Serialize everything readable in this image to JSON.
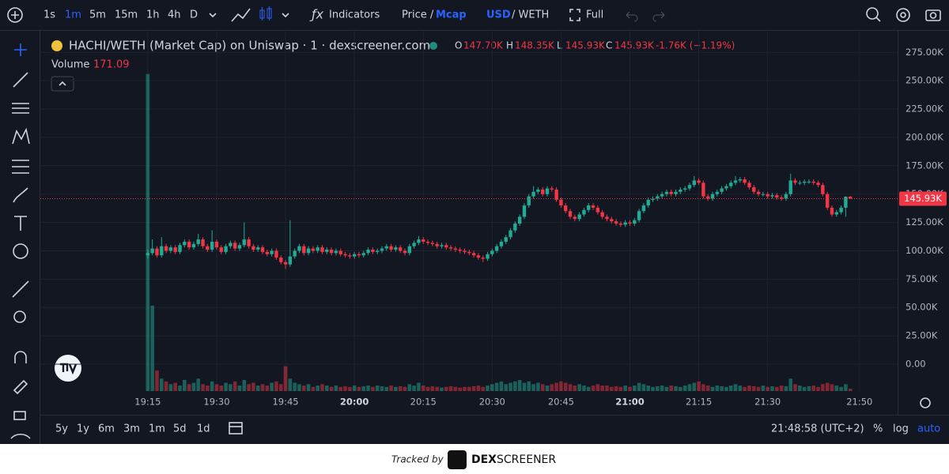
{
  "toolbar": {
    "intervals": [
      "1s",
      "1m",
      "5m",
      "15m",
      "1h",
      "4h",
      "D"
    ],
    "active_interval": 1,
    "indicators": "Indicators",
    "price": "Price /",
    "mcap": "Mcap",
    "usd": "USD",
    "weth": "/ WETH",
    "full": "Full"
  },
  "header": {
    "title": "HACHI/WETH (Market Cap) on Uniswap · 1 · dexscreener.com",
    "ohlc": [
      {
        "label": "O",
        "value": "147.70K"
      },
      {
        "label": "H",
        "value": "148.35K"
      },
      {
        "label": "L",
        "value": "145.93K"
      },
      {
        "label": "C",
        "value": "145.93K"
      }
    ],
    "change": "-1.76K (−1.19%)",
    "volume_label": "Volume"
  },
  "bottom": {
    "ranges": [
      "5y",
      "1y",
      "6m",
      "3m",
      "1m",
      "5d",
      "1d"
    ],
    "clock": "21:48:58 (UTC+2)",
    "percent": "%",
    "log": "log",
    "auto": "auto"
  },
  "footer": {
    "tracked": "Tracked by",
    "brand1": "DEX",
    "brand2": "SCREENER"
  },
  "chart_data": {
    "type": "candlestick",
    "up_color": "#22ab94",
    "down_color": "#f23645",
    "grid": true,
    "xlim": [
      -23.4,
      163.3
    ],
    "xticks": [
      {
        "value": 0,
        "label": "19:15"
      },
      {
        "value": 15,
        "label": "19:30"
      },
      {
        "value": 30,
        "label": "19:45"
      },
      {
        "value": 45,
        "label": "20:00",
        "bold": true
      },
      {
        "value": 60,
        "label": "20:15"
      },
      {
        "value": 75,
        "label": "20:30"
      },
      {
        "value": 90,
        "label": "20:45"
      },
      {
        "value": 105,
        "label": "21:00",
        "bold": true
      },
      {
        "value": 120,
        "label": "21:15"
      },
      {
        "value": 135,
        "label": "21:30"
      },
      {
        "value": 155,
        "label": "21:50"
      }
    ],
    "ylim": [
      -23.7,
      294
    ],
    "yticks": [
      {
        "value": 0,
        "label": "0.00"
      },
      {
        "value": 25,
        "label": "25.00K"
      },
      {
        "value": 50,
        "label": "50.00K"
      },
      {
        "value": 75,
        "label": "75.00K"
      },
      {
        "value": 100,
        "label": "100.00K"
      },
      {
        "value": 125,
        "label": "125.00K"
      },
      {
        "value": 150,
        "label": "150.00K"
      },
      {
        "value": 175,
        "label": "175.00K"
      },
      {
        "value": 200,
        "label": "200.00K"
      },
      {
        "value": 225,
        "label": "225.00K"
      },
      {
        "value": 250,
        "label": "250.00K"
      },
      {
        "value": 275,
        "label": "275.00K"
      }
    ],
    "last_price_label": "145.93K",
    "vlim": [
      0,
      23500
    ],
    "candles": [
      [
        96,
        101,
        93,
        98
      ],
      [
        98,
        110,
        96,
        102
      ],
      [
        102,
        104,
        94,
        96
      ],
      [
        96,
        112,
        94,
        104
      ],
      [
        104,
        106,
        98,
        100
      ],
      [
        100,
        105,
        98,
        103
      ],
      [
        103,
        105,
        97,
        99
      ],
      [
        99,
        107,
        97,
        105
      ],
      [
        105,
        110,
        103,
        108
      ],
      [
        108,
        110,
        101,
        103
      ],
      [
        103,
        108,
        101,
        106
      ],
      [
        106,
        115,
        104,
        110
      ],
      [
        110,
        112,
        102,
        104
      ],
      [
        104,
        106,
        99,
        101
      ],
      [
        101,
        118,
        99,
        108
      ],
      [
        108,
        110,
        101,
        103
      ],
      [
        103,
        105,
        97,
        99
      ],
      [
        99,
        106,
        97,
        104
      ],
      [
        104,
        109,
        102,
        107
      ],
      [
        107,
        109,
        100,
        102
      ],
      [
        102,
        107,
        100,
        105
      ],
      [
        105,
        125,
        103,
        110
      ],
      [
        110,
        112,
        102,
        104
      ],
      [
        104,
        106,
        99,
        101
      ],
      [
        101,
        105,
        99,
        103
      ],
      [
        103,
        105,
        97,
        99
      ],
      [
        99,
        101,
        95,
        97
      ],
      [
        97,
        102,
        95,
        100
      ],
      [
        100,
        102,
        92,
        94
      ],
      [
        94,
        96,
        88,
        90
      ],
      [
        90,
        92,
        84,
        88
      ],
      [
        88,
        127,
        86,
        95
      ],
      [
        95,
        102,
        93,
        100
      ],
      [
        100,
        106,
        98,
        104
      ],
      [
        104,
        106,
        96,
        98
      ],
      [
        98,
        104,
        96,
        102
      ],
      [
        102,
        104,
        98,
        100
      ],
      [
        100,
        105,
        98,
        103
      ],
      [
        103,
        105,
        97,
        99
      ],
      [
        99,
        103,
        97,
        101
      ],
      [
        101,
        103,
        96,
        98
      ],
      [
        98,
        102,
        96,
        100
      ],
      [
        100,
        102,
        95,
        97
      ],
      [
        97,
        99,
        94,
        96
      ],
      [
        96,
        98,
        93,
        95
      ],
      [
        95,
        99,
        93,
        97
      ],
      [
        97,
        99,
        94,
        96
      ],
      [
        96,
        100,
        94,
        98
      ],
      [
        98,
        103,
        96,
        101
      ],
      [
        101,
        103,
        97,
        99
      ],
      [
        99,
        102,
        97,
        100
      ],
      [
        100,
        104,
        98,
        102
      ],
      [
        102,
        106,
        100,
        104
      ],
      [
        104,
        106,
        99,
        101
      ],
      [
        101,
        105,
        99,
        103
      ],
      [
        103,
        105,
        98,
        100
      ],
      [
        100,
        102,
        96,
        98
      ],
      [
        98,
        106,
        96,
        104
      ],
      [
        104,
        109,
        102,
        107
      ],
      [
        107,
        113,
        105,
        110
      ],
      [
        110,
        112,
        106,
        108
      ],
      [
        108,
        110,
        105,
        107
      ],
      [
        107,
        109,
        104,
        106
      ],
      [
        106,
        108,
        102,
        104
      ],
      [
        104,
        107,
        102,
        105
      ],
      [
        105,
        107,
        101,
        103
      ],
      [
        103,
        105,
        100,
        102
      ],
      [
        102,
        104,
        99,
        101
      ],
      [
        101,
        103,
        98,
        100
      ],
      [
        100,
        102,
        97,
        99
      ],
      [
        99,
        101,
        96,
        98
      ],
      [
        98,
        100,
        94,
        96
      ],
      [
        96,
        98,
        92,
        94
      ],
      [
        94,
        96,
        90,
        93
      ],
      [
        93,
        99,
        91,
        97
      ],
      [
        97,
        102,
        95,
        100
      ],
      [
        100,
        106,
        98,
        104
      ],
      [
        104,
        110,
        102,
        108
      ],
      [
        108,
        114,
        106,
        112
      ],
      [
        112,
        120,
        110,
        118
      ],
      [
        118,
        126,
        116,
        124
      ],
      [
        124,
        132,
        122,
        130
      ],
      [
        130,
        142,
        128,
        140
      ],
      [
        140,
        150,
        138,
        148
      ],
      [
        148,
        157,
        146,
        152
      ],
      [
        152,
        156,
        150,
        154
      ],
      [
        154,
        156,
        148,
        150
      ],
      [
        150,
        157,
        148,
        155
      ],
      [
        155,
        157,
        152,
        154
      ],
      [
        154,
        156,
        143,
        145
      ],
      [
        145,
        147,
        138,
        140
      ],
      [
        140,
        142,
        133,
        135
      ],
      [
        135,
        137,
        128,
        130
      ],
      [
        130,
        132,
        126,
        128
      ],
      [
        128,
        134,
        126,
        132
      ],
      [
        132,
        138,
        130,
        136
      ],
      [
        136,
        142,
        134,
        140
      ],
      [
        140,
        142,
        136,
        138
      ],
      [
        138,
        140,
        132,
        134
      ],
      [
        134,
        136,
        128,
        130
      ],
      [
        130,
        132,
        126,
        128
      ],
      [
        128,
        130,
        124,
        126
      ],
      [
        126,
        128,
        122,
        124
      ],
      [
        124,
        126,
        121,
        123
      ],
      [
        123,
        127,
        121,
        125
      ],
      [
        125,
        127,
        122,
        124
      ],
      [
        124,
        129,
        122,
        127
      ],
      [
        127,
        137,
        125,
        135
      ],
      [
        135,
        142,
        133,
        140
      ],
      [
        140,
        147,
        138,
        145
      ],
      [
        145,
        148,
        143,
        146
      ],
      [
        146,
        150,
        144,
        148
      ],
      [
        148,
        152,
        146,
        150
      ],
      [
        150,
        154,
        148,
        152
      ],
      [
        152,
        154,
        148,
        150
      ],
      [
        150,
        154,
        148,
        152
      ],
      [
        152,
        156,
        150,
        154
      ],
      [
        154,
        157,
        152,
        155
      ],
      [
        155,
        160,
        153,
        158
      ],
      [
        158,
        166,
        156,
        162
      ],
      [
        162,
        164,
        158,
        160
      ],
      [
        160,
        162,
        146,
        148
      ],
      [
        148,
        150,
        144,
        146
      ],
      [
        146,
        152,
        144,
        150
      ],
      [
        150,
        154,
        148,
        152
      ],
      [
        152,
        157,
        150,
        155
      ],
      [
        155,
        159,
        153,
        157
      ],
      [
        157,
        162,
        155,
        160
      ],
      [
        160,
        166,
        158,
        162
      ],
      [
        162,
        165,
        160,
        163
      ],
      [
        163,
        165,
        158,
        160
      ],
      [
        160,
        162,
        154,
        156
      ],
      [
        156,
        158,
        150,
        152
      ],
      [
        152,
        154,
        148,
        150
      ],
      [
        150,
        152,
        148,
        150
      ],
      [
        150,
        152,
        146,
        148
      ],
      [
        148,
        151,
        146,
        149
      ],
      [
        149,
        151,
        145,
        147
      ],
      [
        147,
        149,
        144,
        146
      ],
      [
        146,
        152,
        144,
        150
      ],
      [
        150,
        168,
        148,
        162
      ],
      [
        162,
        164,
        158,
        160
      ],
      [
        160,
        162,
        158,
        160
      ],
      [
        160,
        163,
        158,
        161
      ],
      [
        161,
        163,
        159,
        161
      ],
      [
        161,
        163,
        158,
        160
      ],
      [
        160,
        162,
        156,
        158
      ],
      [
        158,
        160,
        148,
        150
      ],
      [
        150,
        152,
        136,
        138
      ],
      [
        138,
        140,
        130,
        132
      ],
      [
        132,
        136,
        130,
        134
      ],
      [
        134,
        140,
        132,
        138
      ],
      [
        138,
        148,
        130,
        147.7
      ],
      [
        147.7,
        148.35,
        145.93,
        145.93
      ]
    ],
    "volume": [
      23000,
      6200,
      1500,
      900,
      700,
      500,
      600,
      400,
      800,
      500,
      600,
      900,
      500,
      400,
      700,
      500,
      400,
      600,
      500,
      700,
      400,
      800,
      500,
      600,
      400,
      500,
      400,
      600,
      700,
      500,
      1800,
      900,
      600,
      500,
      400,
      500,
      300,
      400,
      500,
      400,
      300,
      400,
      300,
      350,
      300,
      400,
      300,
      350,
      400,
      300,
      400,
      350,
      300,
      400,
      300,
      350,
      300,
      500,
      400,
      600,
      400,
      300,
      350,
      300,
      250,
      300,
      350,
      300,
      250,
      300,
      300,
      350,
      400,
      300,
      400,
      500,
      600,
      700,
      500,
      600,
      700,
      800,
      600,
      700,
      500,
      600,
      500,
      400,
      500,
      600,
      700,
      600,
      500,
      400,
      500,
      400,
      300,
      400,
      500,
      400,
      400,
      300,
      350,
      300,
      400,
      300,
      400,
      600,
      500,
      400,
      300,
      350,
      400,
      300,
      400,
      350,
      300,
      400,
      500,
      600,
      700,
      500,
      400,
      300,
      400,
      350,
      300,
      400,
      500,
      400,
      300,
      400,
      350,
      300,
      400,
      300,
      350,
      300,
      400,
      350,
      900,
      500,
      400,
      300,
      350,
      400,
      300,
      500,
      600,
      500,
      400,
      300,
      500,
      171.09
    ]
  }
}
